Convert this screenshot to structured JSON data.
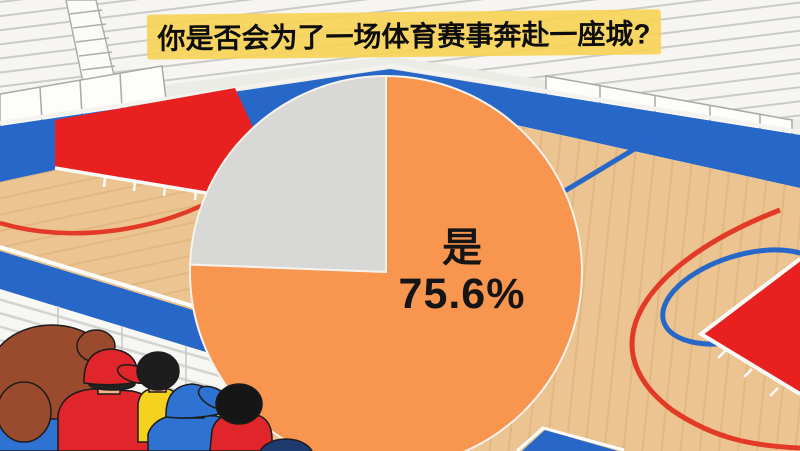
{
  "banner": {
    "title": "你是否会为了一场体育赛事奔赴一座城?"
  },
  "chart_data": {
    "type": "pie",
    "title": "你是否会为了一场体育赛事奔赴一座城?",
    "series": [
      {
        "label": "是",
        "value": 75.6,
        "color": "#F8954F"
      },
      {
        "label": "",
        "value": 24.4,
        "color": "#D8D8D6"
      }
    ],
    "displayed_slice_label": "是",
    "displayed_slice_value": "75.6%",
    "start_angle_deg": 0,
    "direction": "clockwise",
    "legend_position": "none",
    "label_position": "inside-right"
  },
  "scene_palette": {
    "banner_yellow": "#F6D358",
    "court_blue": "#2767C8",
    "court_red": "#E8201F",
    "wood_floor": "#EBC491",
    "bleacher_white": "#F6F5F2"
  }
}
